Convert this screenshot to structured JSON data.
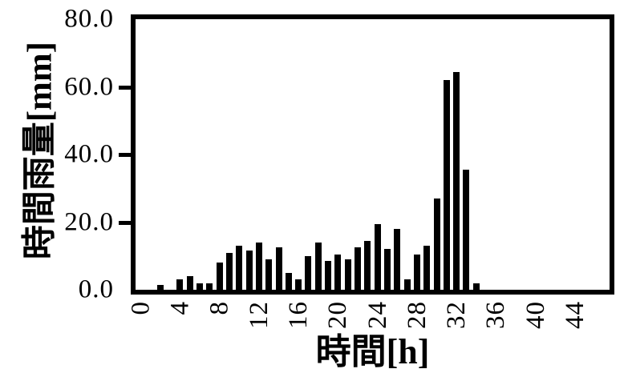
{
  "chart_data": {
    "type": "bar",
    "title": "",
    "xlabel": "時間[h]",
    "ylabel": "時間雨量[mm]",
    "x": [
      0,
      1,
      2,
      3,
      4,
      5,
      6,
      7,
      8,
      9,
      10,
      11,
      12,
      13,
      14,
      15,
      16,
      17,
      18,
      19,
      20,
      21,
      22,
      23,
      24,
      25,
      26,
      27,
      28,
      29,
      30,
      31,
      32,
      33,
      34,
      35,
      36,
      37,
      38,
      39,
      40,
      41,
      42,
      43,
      44,
      45,
      46,
      47
    ],
    "values": [
      0,
      0,
      1.5,
      0,
      3,
      4,
      2,
      2,
      8,
      11,
      13,
      11.5,
      14,
      9,
      12.5,
      5,
      3,
      10,
      14,
      8.5,
      10.5,
      9,
      12.5,
      14.5,
      19.5,
      12,
      18,
      3,
      10.5,
      13,
      27,
      62,
      64.5,
      35.5,
      2,
      0,
      0,
      0,
      0,
      0,
      0,
      0,
      0,
      0,
      0,
      0,
      0,
      0
    ],
    "xlim": [
      -0.5,
      47.5
    ],
    "ylim": [
      0,
      80
    ],
    "xtick_values": [
      0,
      4,
      8,
      12,
      16,
      20,
      24,
      28,
      32,
      36,
      40,
      44
    ],
    "xtick_labels": [
      "0",
      "4",
      "8",
      "12",
      "16",
      "20",
      "24",
      "28",
      "32",
      "36",
      "40",
      "44"
    ],
    "ytick_values": [
      0,
      20,
      40,
      60,
      80
    ],
    "ytick_labels": [
      "0.0",
      "20.0",
      "40.0",
      "60.0",
      "80.0"
    ],
    "bar_color": "#000000",
    "axis_color": "#000000",
    "background_color": "#ffffff",
    "grid": false,
    "legend_position": "none",
    "x_labels_rotation_deg": -90
  }
}
